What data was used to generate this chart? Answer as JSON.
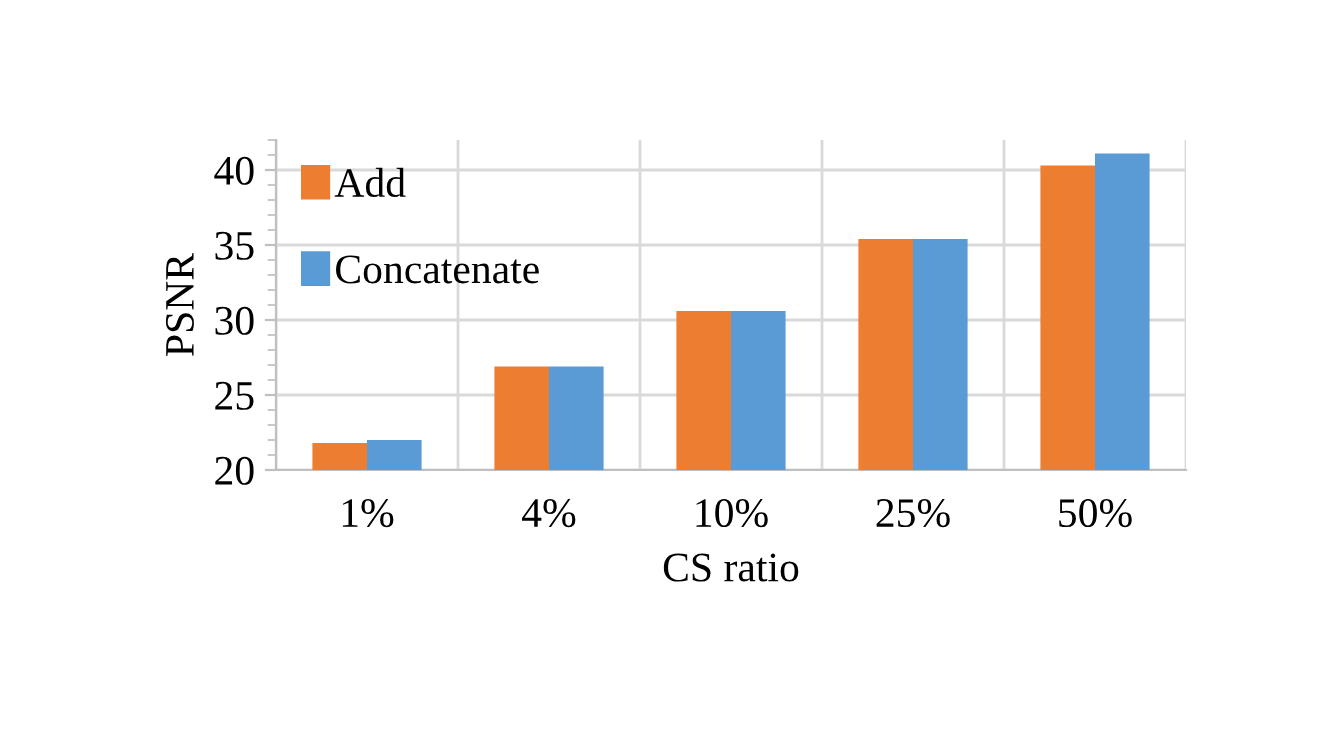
{
  "chart_data": {
    "type": "bar",
    "xlabel": "CS ratio",
    "ylabel": "PSNR",
    "categories": [
      "1%",
      "4%",
      "10%",
      "25%",
      "50%"
    ],
    "series": [
      {
        "name": "Add",
        "color": "#ed7d31",
        "values": [
          21.8,
          26.9,
          30.6,
          35.4,
          40.3
        ]
      },
      {
        "name": "Concatenate",
        "color": "#5b9bd5",
        "values": [
          22.0,
          26.9,
          30.6,
          35.4,
          41.1
        ]
      }
    ],
    "ylim": [
      20,
      42
    ],
    "yticks": [
      20,
      25,
      30,
      35,
      40
    ],
    "grid": true,
    "legend": "top left"
  }
}
